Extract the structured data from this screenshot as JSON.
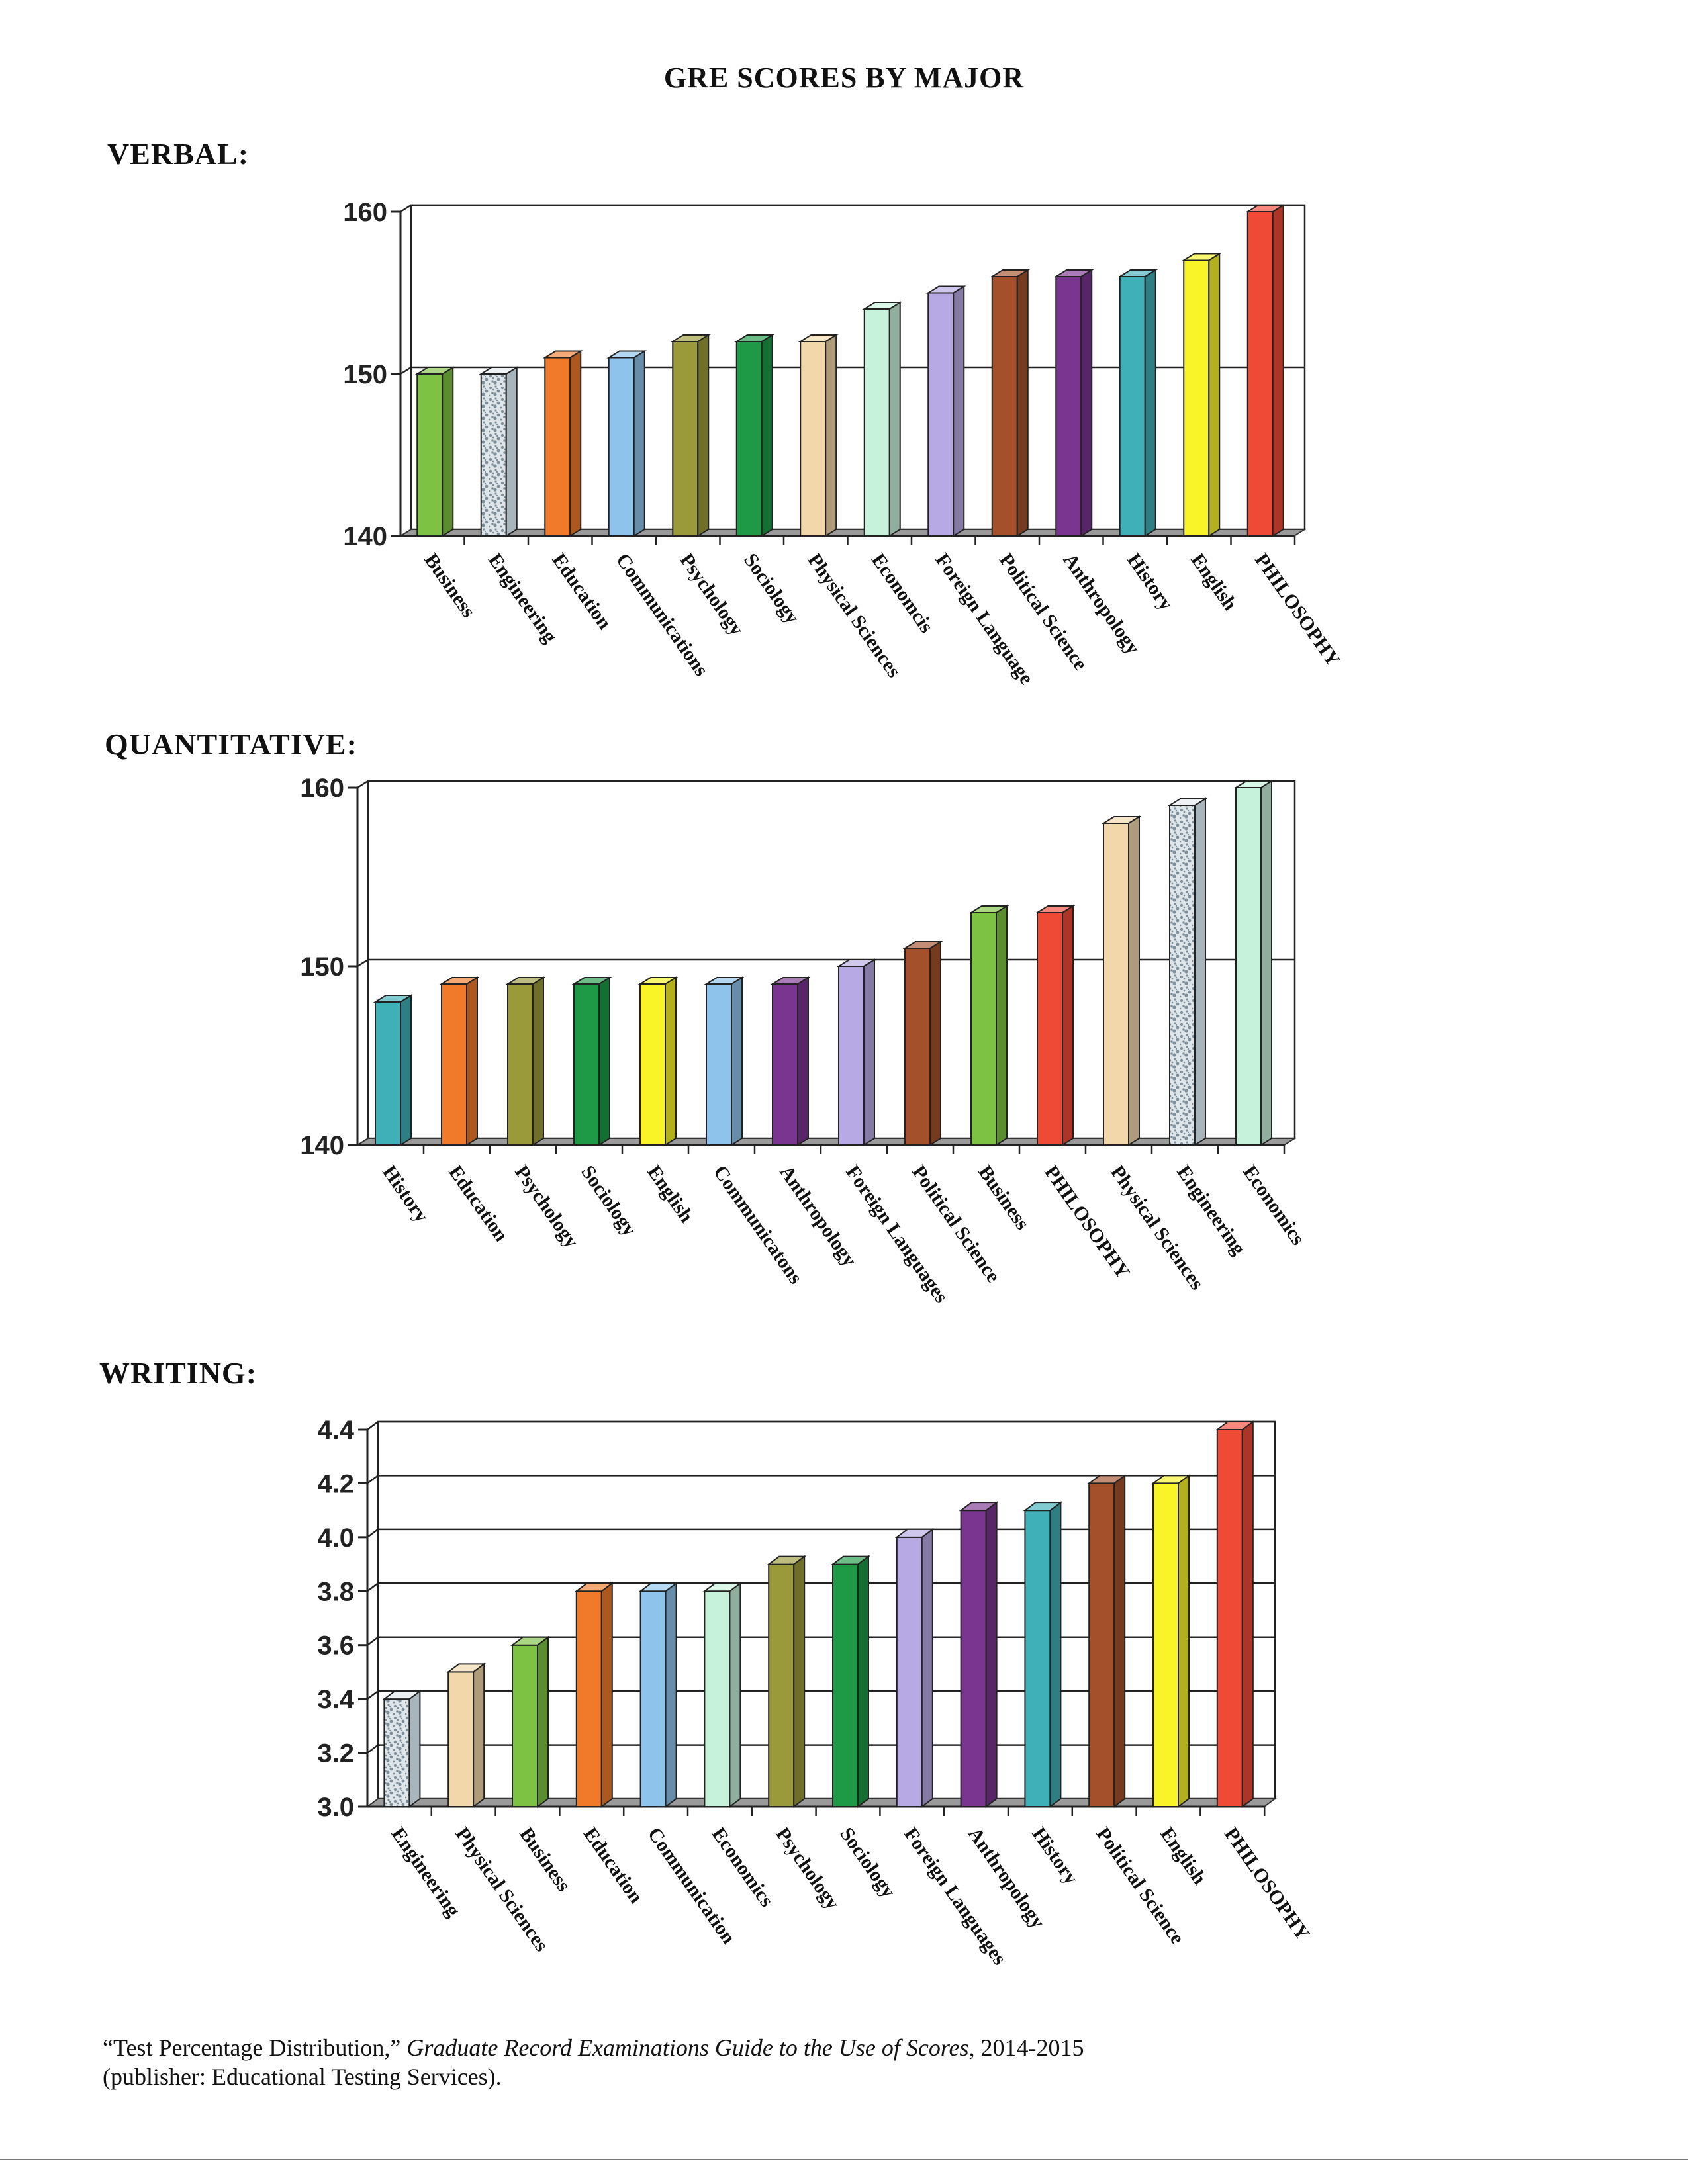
{
  "page": {
    "title": "GRE SCORES BY MAJOR",
    "citation": {
      "part1": "“Test Percentage Distribution,” ",
      "italic": "Graduate Record Examinations Guide to the Use of Scores",
      "part2": ", 2014-2015",
      "line2": "(publisher:  Educational Testing Services)."
    }
  },
  "colors": {
    "green": "#7dc242",
    "speckle": "#c9d4dc",
    "orange": "#f07a2a",
    "lightblue": "#8ec4ec",
    "olive": "#9a9a3a",
    "darkgreen": "#1e9a46",
    "tan": "#f2d7aa",
    "mint": "#c6f2dc",
    "lavender": "#b7a9e4",
    "brown": "#a4502a",
    "purple": "#7a3590",
    "teal": "#3fb0b8",
    "yellow": "#f8f428",
    "red": "#ee4a36"
  },
  "chart_data": [
    {
      "id": "verbal",
      "label": "VERBAL:",
      "type": "bar",
      "ylim": [
        140,
        160
      ],
      "yticks": [
        "140",
        "150",
        "160"
      ],
      "gridlines": [
        150,
        160
      ],
      "categories": [
        "Business",
        "Engineering",
        "Education",
        "Communications",
        "Psychology",
        "Sociology",
        "Physical Sciences",
        "Economcis",
        "Foreign Language",
        "Political Science",
        "Anthropology",
        "History",
        "English",
        "PHILOSOPHY"
      ],
      "values": [
        150,
        150,
        151,
        151,
        152,
        152,
        152,
        154,
        155,
        156,
        156,
        156,
        157,
        160
      ],
      "bar_colors": [
        "green",
        "speckle",
        "orange",
        "lightblue",
        "olive",
        "darkgreen",
        "tan",
        "mint",
        "lavender",
        "brown",
        "purple",
        "teal",
        "yellow",
        "red"
      ]
    },
    {
      "id": "quantitative",
      "label": "QUANTITATIVE:",
      "type": "bar",
      "ylim": [
        140,
        160
      ],
      "yticks": [
        "140",
        "150",
        "160"
      ],
      "gridlines": [
        150,
        160
      ],
      "categories": [
        "History",
        "Education",
        "Psychology",
        "Sociology",
        "English",
        "Communicatons",
        "Anthropology",
        "Foreign Languages",
        "Political Science",
        "Business",
        "PHILOSOPHY",
        "Physical Sciences",
        "Engineering",
        "Economics"
      ],
      "values": [
        148,
        149,
        149,
        149,
        149,
        149,
        149,
        150,
        151,
        153,
        153,
        158,
        159,
        160
      ],
      "bar_colors": [
        "teal",
        "orange",
        "olive",
        "darkgreen",
        "yellow",
        "lightblue",
        "purple",
        "lavender",
        "brown",
        "green",
        "red",
        "tan",
        "speckle",
        "mint"
      ]
    },
    {
      "id": "writing",
      "label": "WRITING:",
      "type": "bar",
      "ylim": [
        3.0,
        4.4
      ],
      "yticks": [
        "3.0",
        "3.2",
        "3.4",
        "3.6",
        "3.8",
        "4.0",
        "4.2",
        "4.4"
      ],
      "gridlines": [
        3.2,
        3.4,
        3.6,
        3.8,
        4.0,
        4.2,
        4.4
      ],
      "categories": [
        "Engineering",
        "Physical Sciences",
        "Business",
        "Education",
        "Communication",
        "Economics",
        "Psychology",
        "Sociology",
        "Foreign Languages",
        "Anthropology",
        "History",
        "Political Science",
        "English",
        "PHILOSOPHY"
      ],
      "values": [
        3.4,
        3.5,
        3.6,
        3.8,
        3.8,
        3.8,
        3.9,
        3.9,
        4.0,
        4.1,
        4.1,
        4.2,
        4.2,
        4.4
      ],
      "bar_colors": [
        "speckle",
        "tan",
        "green",
        "orange",
        "lightblue",
        "mint",
        "olive",
        "darkgreen",
        "lavender",
        "purple",
        "teal",
        "brown",
        "yellow",
        "red"
      ]
    }
  ]
}
